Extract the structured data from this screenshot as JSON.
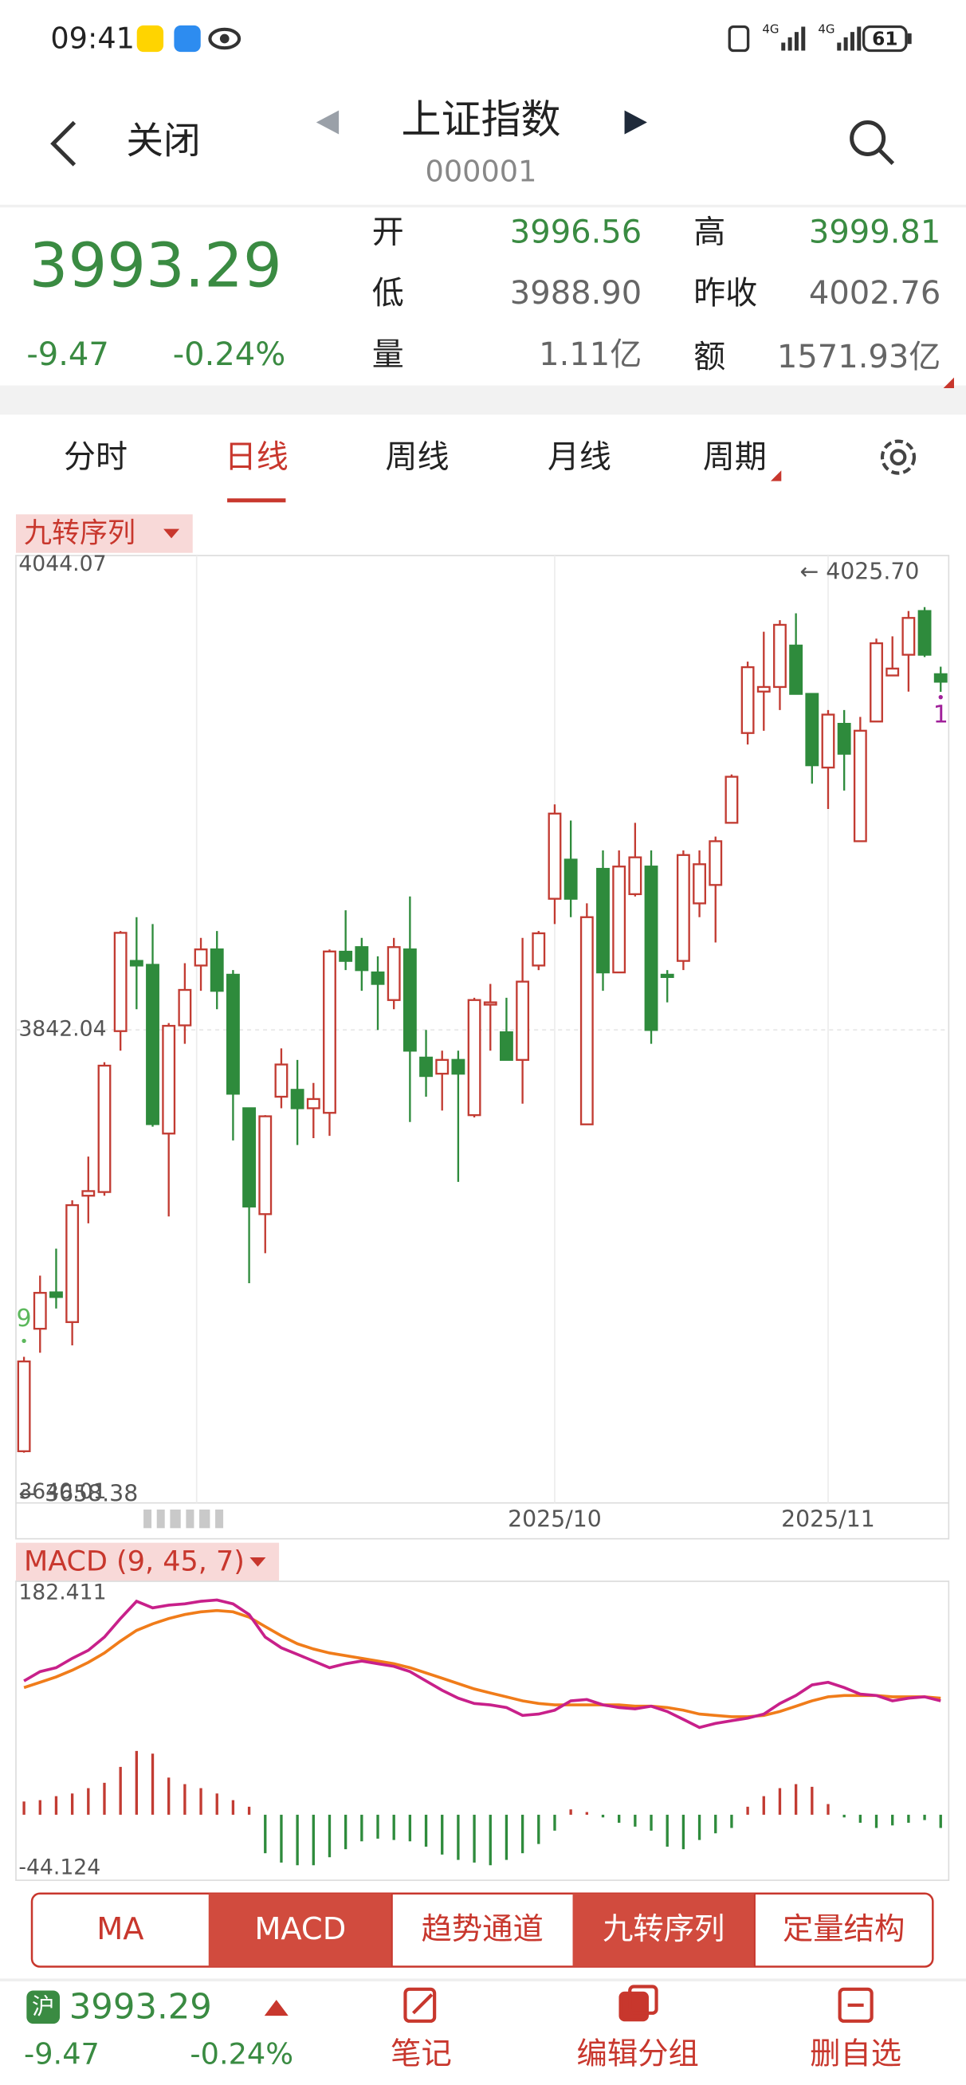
{
  "status_bar": {
    "time": "09:41",
    "network": [
      "4G",
      "4G"
    ],
    "battery": "61"
  },
  "header": {
    "back": "关闭",
    "title": "上证指数",
    "code": "000001"
  },
  "quote": {
    "price": "3993.29",
    "change": "-9.47",
    "change_pct": "-0.24%",
    "fields": [
      {
        "label": "开",
        "value": "3996.56",
        "color": "#3a8b42"
      },
      {
        "label": "高",
        "value": "3999.81",
        "color": "#3a8b42"
      },
      {
        "label": "低",
        "value": "3988.90",
        "color": "#666666"
      },
      {
        "label": "昨收",
        "value": "4002.76",
        "color": "#666666"
      },
      {
        "label": "量",
        "value": "1.11亿",
        "color": "#666666"
      },
      {
        "label": "额",
        "value": "1571.93亿",
        "color": "#666666"
      }
    ]
  },
  "tabs": {
    "items": [
      "分时",
      "日线",
      "周线",
      "月线",
      "周期"
    ],
    "active": 1
  },
  "indicator_labels": {
    "main": "九转序列",
    "sub": "MACD (9, 45, 7)"
  },
  "chart_data": [
    {
      "type": "candlestick",
      "categories": [
        null,
        null,
        null,
        null,
        null,
        null,
        null,
        null,
        null,
        null,
        null,
        null,
        null,
        null,
        null,
        null,
        null,
        null,
        null,
        null,
        null,
        null,
        null,
        null,
        null,
        null,
        null,
        null,
        null,
        null,
        null,
        null,
        null,
        "2025/10",
        null,
        null,
        null,
        null,
        null,
        null,
        null,
        null,
        null,
        null,
        null,
        null,
        null,
        null,
        null,
        null,
        "2025/11",
        null,
        null,
        null,
        null,
        null,
        null,
        null
      ],
      "open": [
        3659,
        3712.2,
        3728,
        3715.1,
        3770,
        3771.6,
        3841.5,
        3872,
        3870.3,
        3797,
        3844,
        3870,
        3877,
        3866,
        3808,
        3762,
        3813,
        3816,
        3808,
        3806,
        3876,
        3878,
        3867,
        3855,
        3877,
        3830,
        3823,
        3829,
        3805,
        3853,
        3841,
        3829,
        3870,
        3899,
        3916,
        3801,
        3912,
        3867,
        3901,
        3913,
        3866,
        3872,
        3897,
        3905,
        3932,
        3971,
        3989,
        3991,
        4009,
        3988,
        3956,
        3975,
        3924,
        3976,
        3996,
        4005,
        4024,
        3996.56
      ],
      "high": [
        3700,
        3735.3,
        3747,
        3768,
        3787,
        3828,
        3885,
        3891,
        3888,
        3845,
        3871,
        3882,
        3885,
        3868,
        3808,
        3805,
        3834,
        3829,
        3819,
        3877,
        3894,
        3882,
        3874,
        3882,
        3900,
        3842,
        3833,
        3833,
        3856,
        3862,
        3856,
        3882,
        3885,
        3940,
        3933,
        3897,
        3920,
        3920,
        3932,
        3920,
        3868,
        3920,
        3920,
        3926,
        3953,
        4002,
        4015,
        4020,
        4023,
        3988,
        3981,
        3981,
        3978,
        4012,
        4013,
        4024,
        4025.7,
        3999.81
      ],
      "low": [
        3658.38,
        3701.8,
        3721,
        3705,
        3758,
        3770,
        3833,
        3851,
        3800,
        3761,
        3836,
        3859,
        3851,
        3794,
        3732,
        3745,
        3808,
        3792,
        3795,
        3796,
        3868,
        3859,
        3842,
        3851,
        3802,
        3813,
        3807,
        3776,
        3804,
        3833,
        3829,
        3810,
        3868,
        3888,
        3891,
        3801,
        3859,
        3867,
        3900,
        3836,
        3854,
        3868,
        3891,
        3880,
        3932,
        3966,
        3972,
        3981,
        3988,
        3949,
        3938,
        3946,
        3924,
        3976,
        3996,
        3989,
        4004,
        3988.9
      ],
      "close": [
        3698,
        3727.8,
        3726,
        3765.9,
        3772,
        3826.5,
        3884.2,
        3870,
        3801.1,
        3843.8,
        3859.4,
        3877,
        3859,
        3814.3,
        3765.3,
        3804.5,
        3827,
        3808,
        3812,
        3876.1,
        3872,
        3868,
        3862,
        3878,
        3833,
        3822,
        3829,
        3823,
        3855,
        3854,
        3829,
        3863,
        3884,
        3936,
        3899,
        3891,
        3867,
        3913,
        3917,
        3842,
        3865,
        3918,
        3914,
        3924,
        3952,
        3999.6,
        3991,
        4018,
        3988,
        3957,
        3979,
        3962,
        3972,
        4010,
        3999,
        4021,
        4005,
        3993.29
      ],
      "up_color": "#c23b32",
      "down_color": "#2e8b3c",
      "ylim": [
        3640.01,
        4044.07
      ],
      "yticks": [
        3640.01,
        3842.04,
        4044.07
      ],
      "grid": true,
      "annotations": [
        {
          "text": "← 4025.70",
          "at": "high"
        },
        {
          "text": "← 3658.38",
          "at": "low"
        }
      ],
      "nine_turn": [
        {
          "index": 0,
          "label": "9",
          "color": "#5cb85c",
          "position": "above"
        },
        {
          "index": 57,
          "label": "1",
          "color": "#a0209a",
          "position": "below"
        }
      ]
    },
    {
      "type": "macd",
      "ylim": [
        -44.124,
        182.411
      ],
      "yticks": [
        -44.124,
        182.411
      ],
      "series": [
        {
          "color": "#c8208a",
          "values": [
            110.2,
            117.9,
            121.1,
            128.8,
            135.4,
            146.3,
            161.6,
            175.8,
            170.4,
            172.6,
            173.7,
            175.8,
            176.9,
            173.7,
            164.9,
            146.3,
            137.5,
            132.1,
            126.6,
            121.1,
            124.4,
            126.6,
            124.4,
            122.2,
            117.9,
            110.2,
            102.5,
            96,
            91.6,
            90.5,
            88.3,
            81.8,
            82.9,
            86.1,
            93.8,
            94.9,
            90.5,
            88.3,
            87.2,
            89.4,
            85,
            78.5,
            71.9,
            75.2,
            77.4,
            79.6,
            82.9,
            91.6,
            98.2,
            106.9,
            109.1,
            104.7,
            99.3,
            98.2,
            93.8,
            96,
            97.1,
            93.8
          ]
        },
        {
          "color": "#f07c1a",
          "values": [
            104.7,
            109.1,
            113.5,
            119,
            125.5,
            133.2,
            143,
            151.8,
            157.2,
            161.6,
            164.9,
            167.1,
            168.2,
            167.1,
            162.7,
            155,
            147.4,
            140.8,
            136.5,
            133.2,
            131,
            128.8,
            126.6,
            124.4,
            121.1,
            116.8,
            112.4,
            108,
            103.6,
            100.3,
            97.1,
            93.8,
            91.6,
            90.5,
            90.5,
            90.5,
            90.5,
            90.5,
            89.4,
            89.4,
            88.3,
            86.1,
            82.9,
            81.8,
            80.7,
            80.7,
            81.8,
            85,
            89.4,
            93.8,
            97.1,
            98.2,
            98.2,
            98.2,
            97.1,
            97.1,
            97.1,
            96
          ]
        }
      ],
      "histogram": {
        "up_color": "#c23b32",
        "down_color": "#2e8b3c",
        "values": [
          10.9,
          12,
          15.3,
          17.5,
          21.9,
          26.3,
          39.4,
          52.5,
          50.3,
          30.6,
          25.2,
          21.9,
          17.5,
          12,
          6.6,
          -31.7,
          -39.4,
          -41.6,
          -41.6,
          -35,
          -28.4,
          -21.9,
          -19.7,
          -20.8,
          -21.9,
          -26.3,
          -32.8,
          -37.2,
          -39.4,
          -41.6,
          -37.2,
          -31.7,
          -24.1,
          -13.1,
          4.4,
          2.2,
          -2.2,
          -6.6,
          -9.8,
          -13.1,
          -26.3,
          -28.4,
          -20.8,
          -15.3,
          -10.9,
          6.6,
          15.3,
          21.9,
          25.2,
          23,
          8.8,
          -2.2,
          -6.6,
          -10.9,
          -8.8,
          -6.6,
          -4.4,
          -10.9
        ]
      }
    }
  ],
  "indicator_buttons": {
    "items": [
      "MA",
      "MACD",
      "趋势通道",
      "九转序列",
      "定量结构"
    ],
    "active": [
      1,
      3
    ]
  },
  "footer": {
    "market": "沪",
    "price": "3993.29",
    "change": "-9.47",
    "change_pct": "-0.24%",
    "actions": [
      "笔记",
      "编辑分组",
      "删自选"
    ]
  }
}
